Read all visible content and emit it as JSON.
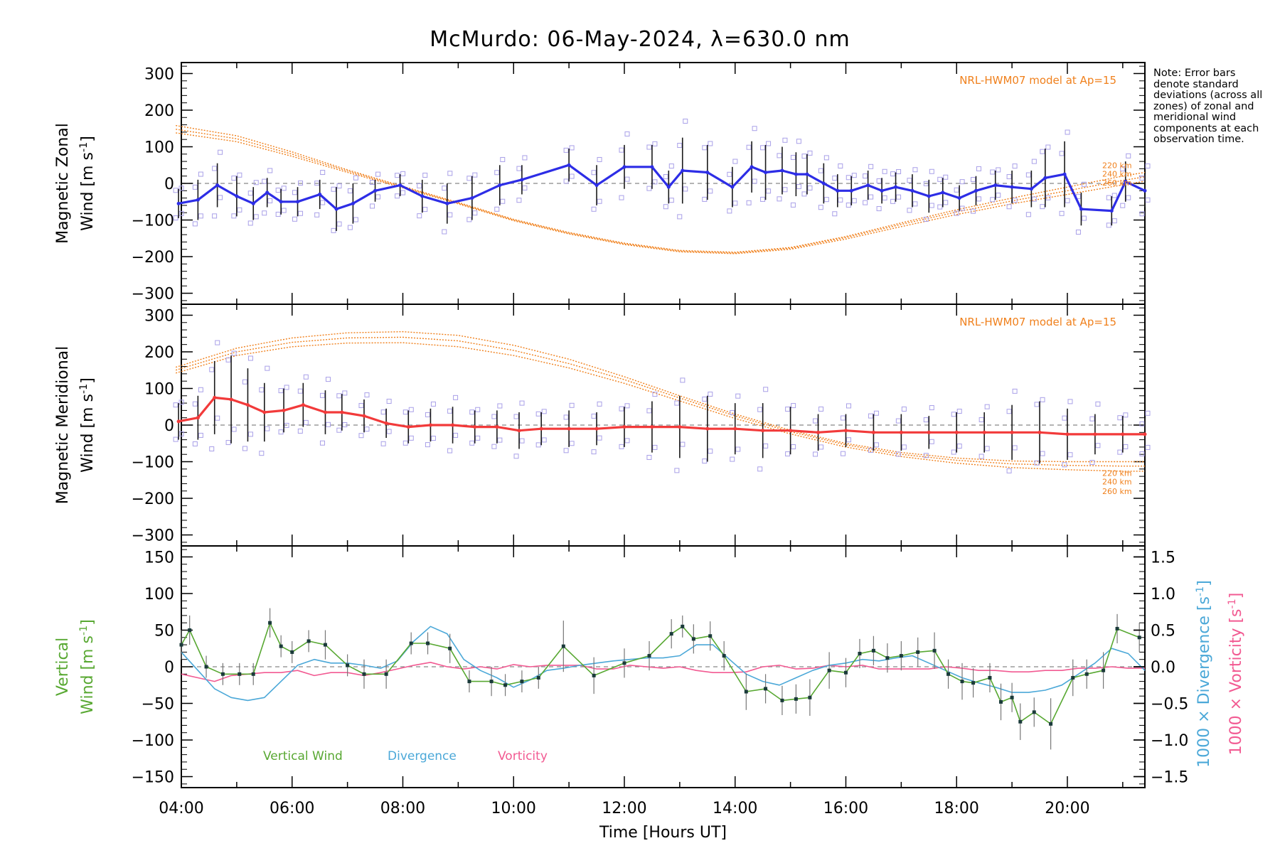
{
  "title": "McMurdo: 06-May-2024, λ=630.0 nm",
  "note": "Note: Error bars denote standard deviations (across all zones) of zonal and meridional wind components at each observation time.",
  "colors": {
    "zonal": "#2d2de6",
    "meridional": "#f23a3a",
    "model": "#f0801c",
    "scatter": "#a9a0e8",
    "vertical": "#58a832",
    "divergence": "#4ba8d8",
    "vorticity": "#f25a92",
    "errorbar": "#1a1a1a",
    "zero_line": "#888888"
  },
  "x_axis": {
    "label": "Time [Hours UT]",
    "range": [
      4.0,
      21.4
    ],
    "ticks": [
      "04:00",
      "06:00",
      "08:00",
      "10:00",
      "12:00",
      "14:00",
      "16:00",
      "18:00",
      "20:00"
    ]
  },
  "chart_data": [
    {
      "type": "line",
      "panel": "zonal",
      "ylabel_line1": "Magnetic Zonal",
      "ylabel_line2": "Wind [m s",
      "ylabel_sup": "-1",
      "ylabel_close": "]",
      "ylim": [
        -330,
        330
      ],
      "yticks": [
        -300,
        -200,
        -100,
        0,
        100,
        200,
        300
      ],
      "model_label": "NRL-HWM07 model at Ap=15",
      "model_altitudes": [
        "220 km",
        "240 km",
        "260 km"
      ],
      "x": [
        3.95,
        4.3,
        4.65,
        5.0,
        5.3,
        5.55,
        5.8,
        6.1,
        6.5,
        6.8,
        7.1,
        7.5,
        7.95,
        8.35,
        8.8,
        9.25,
        9.75,
        10.15,
        11.0,
        11.5,
        12.0,
        12.5,
        12.8,
        13.05,
        13.5,
        13.95,
        14.3,
        14.55,
        14.85,
        15.1,
        15.3,
        15.6,
        15.85,
        16.1,
        16.4,
        16.65,
        16.9,
        17.2,
        17.5,
        17.75,
        18.05,
        18.35,
        18.7,
        19.0,
        19.35,
        19.6,
        19.95,
        20.25,
        20.8,
        21.05,
        21.4
      ],
      "y": [
        -55,
        -45,
        -5,
        -35,
        -55,
        -25,
        -50,
        -50,
        -30,
        -70,
        -55,
        -20,
        -5,
        -35,
        -55,
        -40,
        -5,
        10,
        50,
        -5,
        45,
        45,
        -10,
        35,
        30,
        -10,
        45,
        30,
        35,
        25,
        25,
        0,
        -20,
        -20,
        -5,
        -20,
        -10,
        -20,
        -35,
        -25,
        -40,
        -20,
        -5,
        -10,
        -15,
        15,
        25,
        -70,
        -75,
        5,
        -20
      ],
      "err": [
        40,
        55,
        60,
        55,
        45,
        40,
        35,
        40,
        40,
        60,
        55,
        30,
        30,
        45,
        55,
        60,
        55,
        40,
        45,
        55,
        60,
        60,
        45,
        90,
        75,
        55,
        70,
        75,
        65,
        60,
        55,
        55,
        45,
        40,
        40,
        35,
        40,
        45,
        45,
        40,
        35,
        40,
        40,
        45,
        50,
        80,
        90,
        45,
        40,
        55,
        45
      ],
      "model": [
        {
          "x": [
            3.9,
            5,
            6,
            7,
            8,
            9,
            10,
            11,
            12,
            13,
            14,
            15,
            16,
            17,
            18,
            19,
            20,
            21,
            21.4
          ],
          "y": [
            158,
            130,
            86,
            37,
            -8,
            -52,
            -98,
            -134,
            -163,
            -183,
            -188,
            -175,
            -145,
            -108,
            -72,
            -40,
            -10,
            20,
            30
          ]
        },
        {
          "x": [
            3.9,
            5,
            6,
            7,
            8,
            9,
            10,
            11,
            12,
            13,
            14,
            15,
            16,
            17,
            18,
            19,
            20,
            21,
            21.4
          ],
          "y": [
            148,
            122,
            80,
            34,
            -10,
            -54,
            -100,
            -136,
            -165,
            -185,
            -190,
            -177,
            -148,
            -112,
            -78,
            -48,
            -20,
            8,
            18
          ]
        },
        {
          "x": [
            3.9,
            5,
            6,
            7,
            8,
            9,
            10,
            11,
            12,
            13,
            14,
            15,
            16,
            17,
            18,
            19,
            20,
            21,
            21.4
          ],
          "y": [
            138,
            114,
            74,
            30,
            -12,
            -56,
            -102,
            -138,
            -167,
            -187,
            -192,
            -180,
            -152,
            -118,
            -85,
            -56,
            -30,
            -4,
            6
          ]
        }
      ]
    },
    {
      "type": "line",
      "panel": "meridional",
      "ylabel_line1": "Magnetic Meridional",
      "ylabel_line2": "Wind [m s",
      "ylabel_sup": "-1",
      "ylabel_close": "]",
      "ylim": [
        -330,
        330
      ],
      "yticks": [
        -300,
        -200,
        -100,
        0,
        100,
        200,
        300
      ],
      "model_label": "NRL-HWM07 model at Ap=15",
      "model_altitudes": [
        "220 km",
        "240 km",
        "260 km"
      ],
      "x": [
        3.95,
        4.3,
        4.6,
        4.9,
        5.2,
        5.5,
        5.85,
        6.2,
        6.6,
        6.9,
        7.3,
        7.7,
        8.1,
        8.5,
        8.9,
        9.3,
        9.7,
        10.1,
        10.5,
        11.0,
        11.5,
        12.0,
        12.5,
        13.0,
        13.5,
        14.0,
        14.5,
        15.0,
        15.5,
        16.0,
        16.5,
        17.0,
        17.5,
        18.0,
        18.5,
        19.0,
        19.5,
        20.0,
        20.5,
        21.0,
        21.4
      ],
      "y": [
        10,
        20,
        75,
        70,
        55,
        35,
        40,
        55,
        35,
        35,
        25,
        5,
        -5,
        0,
        0,
        -5,
        -5,
        -15,
        -10,
        -10,
        -10,
        -5,
        -5,
        -5,
        -10,
        -10,
        -15,
        -15,
        -20,
        -15,
        -20,
        -20,
        -20,
        -20,
        -20,
        -20,
        -20,
        -25,
        -25,
        -25,
        -25
      ],
      "err": [
        50,
        60,
        100,
        120,
        100,
        80,
        60,
        60,
        60,
        50,
        45,
        40,
        45,
        45,
        50,
        45,
        45,
        50,
        45,
        50,
        45,
        55,
        70,
        85,
        90,
        70,
        75,
        65,
        50,
        45,
        50,
        50,
        45,
        55,
        55,
        75,
        85,
        70,
        55,
        50,
        45
      ],
      "model": [
        {
          "x": [
            3.9,
            5,
            6,
            7,
            8,
            9,
            10,
            11,
            12,
            13,
            14,
            15,
            16,
            17,
            18,
            19,
            20,
            21,
            21.4
          ],
          "y": [
            158,
            210,
            238,
            252,
            255,
            245,
            218,
            180,
            132,
            80,
            30,
            -14,
            -50,
            -75,
            -90,
            -98,
            -100,
            -100,
            -100
          ]
        },
        {
          "x": [
            3.9,
            5,
            6,
            7,
            8,
            9,
            10,
            11,
            12,
            13,
            14,
            15,
            16,
            17,
            18,
            19,
            20,
            21,
            21.4
          ],
          "y": [
            150,
            200,
            226,
            238,
            240,
            230,
            204,
            168,
            124,
            74,
            25,
            -18,
            -54,
            -80,
            -96,
            -106,
            -110,
            -112,
            -112
          ]
        },
        {
          "x": [
            3.9,
            5,
            6,
            7,
            8,
            9,
            10,
            11,
            12,
            13,
            14,
            15,
            16,
            17,
            18,
            19,
            20,
            21,
            21.4
          ],
          "y": [
            142,
            190,
            214,
            224,
            225,
            214,
            190,
            156,
            114,
            66,
            18,
            -24,
            -60,
            -86,
            -104,
            -116,
            -122,
            -126,
            -126
          ]
        }
      ]
    },
    {
      "type": "line",
      "panel": "vertical",
      "ylabel_line1": "Vertical",
      "ylabel_line2": "Wind [m s",
      "ylabel_sup": "-1",
      "ylabel_close": "]",
      "ylim": [
        -165,
        165
      ],
      "yticks": [
        -150,
        -100,
        -50,
        0,
        50,
        100,
        150
      ],
      "y2label_div": "1000 × Divergence [s",
      "y2label_vort": "1000 × Vorticity [s",
      "y2label_sup": "-1",
      "y2label_close": "]",
      "y2lim": [
        -1.65,
        1.65
      ],
      "y2ticks": [
        "−1.5",
        "−1.0",
        "−0.5",
        "0.0",
        "0.5",
        "1.0",
        "1.5"
      ],
      "legend": [
        "Vertical Wind",
        "Divergence",
        "Vorticity"
      ],
      "vertical_x": [
        4.0,
        4.15,
        4.45,
        4.75,
        5.05,
        5.3,
        5.6,
        5.8,
        6.0,
        6.3,
        6.6,
        7.0,
        7.3,
        7.7,
        8.15,
        8.45,
        8.85,
        9.2,
        9.6,
        9.85,
        10.15,
        10.45,
        10.9,
        11.45,
        12.0,
        12.45,
        12.85,
        13.05,
        13.25,
        13.55,
        13.8,
        14.2,
        14.55,
        14.85,
        15.1,
        15.35,
        15.7,
        16.0,
        16.25,
        16.5,
        16.75,
        17.0,
        17.3,
        17.6,
        17.85,
        18.1,
        18.3,
        18.6,
        18.8,
        19.0,
        19.15,
        19.4,
        19.7,
        20.1,
        20.35,
        20.65,
        20.9,
        21.3
      ],
      "vertical_y": [
        30,
        50,
        0,
        -10,
        -10,
        -10,
        60,
        28,
        20,
        35,
        30,
        2,
        -10,
        -10,
        32,
        32,
        25,
        -20,
        -20,
        -25,
        -20,
        -15,
        28,
        -12,
        5,
        15,
        45,
        55,
        38,
        42,
        15,
        -34,
        -30,
        -46,
        -44,
        -42,
        -5,
        -8,
        18,
        22,
        12,
        15,
        20,
        22,
        -10,
        -20,
        -22,
        -15,
        -48,
        -42,
        -75,
        -62,
        -78,
        -15,
        -10,
        -5,
        52,
        40
      ],
      "vertical_err": [
        20,
        20,
        15,
        15,
        15,
        15,
        20,
        15,
        15,
        15,
        20,
        15,
        20,
        20,
        15,
        15,
        20,
        15,
        20,
        15,
        15,
        15,
        35,
        25,
        20,
        20,
        20,
        15,
        20,
        20,
        20,
        25,
        20,
        20,
        20,
        25,
        25,
        20,
        20,
        20,
        20,
        20,
        20,
        25,
        20,
        25,
        20,
        20,
        25,
        20,
        25,
        20,
        35,
        25,
        20,
        25,
        20,
        20
      ],
      "divergence_x": [
        4.0,
        4.3,
        4.6,
        4.9,
        5.2,
        5.5,
        5.8,
        6.1,
        6.4,
        6.7,
        7.0,
        7.3,
        7.6,
        7.9,
        8.2,
        8.5,
        8.8,
        9.1,
        9.4,
        9.7,
        10.0,
        10.3,
        10.6,
        10.9,
        11.2,
        11.5,
        11.8,
        12.1,
        12.4,
        12.7,
        13.0,
        13.3,
        13.6,
        13.9,
        14.2,
        14.5,
        14.8,
        15.1,
        15.4,
        15.7,
        16.0,
        16.3,
        16.6,
        16.9,
        17.2,
        17.5,
        17.8,
        18.1,
        18.4,
        18.7,
        19.0,
        19.3,
        19.6,
        19.9,
        20.2,
        20.5,
        20.8,
        21.1,
        21.4
      ],
      "divergence_y": [
        0.2,
        -0.05,
        -0.3,
        -0.42,
        -0.46,
        -0.42,
        -0.2,
        0.02,
        0.1,
        0.05,
        0.05,
        0.02,
        -0.02,
        0.08,
        0.35,
        0.55,
        0.45,
        0.1,
        -0.05,
        -0.15,
        -0.28,
        -0.18,
        -0.05,
        -0.02,
        0.02,
        0.05,
        0.08,
        0.1,
        0.12,
        0.12,
        0.15,
        0.3,
        0.3,
        0.1,
        -0.1,
        -0.2,
        -0.25,
        -0.15,
        -0.05,
        0.02,
        0.05,
        0.1,
        0.08,
        0.12,
        0.15,
        0.05,
        -0.05,
        -0.15,
        -0.22,
        -0.28,
        -0.35,
        -0.35,
        -0.32,
        -0.25,
        -0.1,
        0.05,
        0.25,
        0.18,
        -0.05
      ],
      "vorticity_x": [
        4.0,
        4.3,
        4.6,
        4.9,
        5.2,
        5.5,
        5.8,
        6.1,
        6.4,
        6.7,
        7.0,
        7.3,
        7.6,
        7.9,
        8.2,
        8.5,
        8.8,
        9.1,
        9.4,
        9.7,
        10.0,
        10.3,
        10.6,
        10.9,
        11.2,
        11.5,
        11.8,
        12.1,
        12.4,
        12.7,
        13.0,
        13.3,
        13.6,
        13.9,
        14.2,
        14.5,
        14.8,
        15.1,
        15.4,
        15.7,
        16.0,
        16.3,
        16.6,
        16.9,
        17.2,
        17.5,
        17.8,
        18.1,
        18.4,
        18.7,
        19.0,
        19.3,
        19.6,
        19.9,
        20.2,
        20.5,
        20.8,
        21.1,
        21.4
      ],
      "vorticity_y": [
        -0.1,
        -0.15,
        -0.2,
        -0.12,
        -0.1,
        -0.08,
        -0.08,
        -0.05,
        -0.12,
        -0.08,
        -0.08,
        -0.12,
        -0.08,
        -0.03,
        0.02,
        0.06,
        0.0,
        -0.03,
        0.0,
        -0.03,
        0.03,
        0.0,
        0.02,
        0.02,
        0.02,
        -0.03,
        -0.03,
        0.02,
        0.0,
        -0.02,
        0.0,
        -0.05,
        -0.08,
        -0.08,
        -0.07,
        0.0,
        0.02,
        -0.03,
        -0.02,
        0.02,
        0.0,
        0.02,
        -0.03,
        -0.03,
        -0.03,
        -0.03,
        0.0,
        -0.02,
        -0.05,
        -0.05,
        -0.07,
        -0.07,
        -0.05,
        -0.05,
        -0.02,
        -0.02,
        0.0,
        -0.02,
        -0.02
      ]
    }
  ]
}
